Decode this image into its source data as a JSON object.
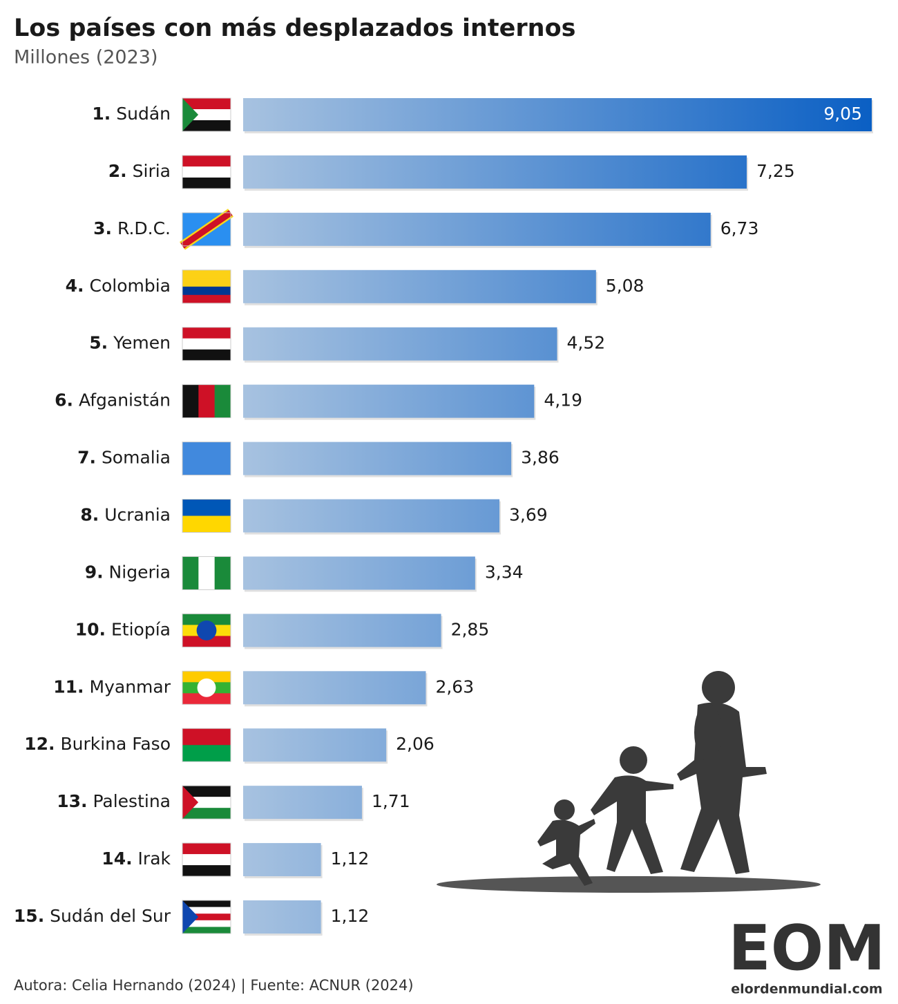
{
  "chart_data": {
    "type": "bar",
    "orientation": "horizontal",
    "title": "Los países con más desplazados internos",
    "subtitle": "Millones (2023)",
    "ranks": [
      "1.",
      "2.",
      "3.",
      "4.",
      "5.",
      "6.",
      "7.",
      "8.",
      "9.",
      "10.",
      "11.",
      "12.",
      "13.",
      "14.",
      "15."
    ],
    "categories": [
      "Sudán",
      "Siria",
      "R.D.C.",
      "Colombia",
      "Yemen",
      "Afganistán",
      "Somalia",
      "Ucrania",
      "Nigeria",
      "Etiopía",
      "Myanmar",
      "Burkina Faso",
      "Palestina",
      "Irak",
      "Sudán del Sur"
    ],
    "values": [
      9.05,
      7.25,
      6.73,
      5.08,
      4.52,
      4.19,
      3.86,
      3.69,
      3.34,
      2.85,
      2.63,
      2.06,
      1.71,
      1.12,
      1.12
    ],
    "value_labels": [
      "9,05",
      "7,25",
      "6,73",
      "5,08",
      "4,52",
      "4,19",
      "3,86",
      "3,69",
      "3,34",
      "2,85",
      "2,63",
      "2,06",
      "1,71",
      "1,12",
      "1,12"
    ],
    "color": "#0a5fc4",
    "footer": "Autora: Celia Hernando (2024) | Fuente: ACNUR (2024)",
    "logo": "EOM",
    "logo_url": "elordenmundial.com"
  }
}
